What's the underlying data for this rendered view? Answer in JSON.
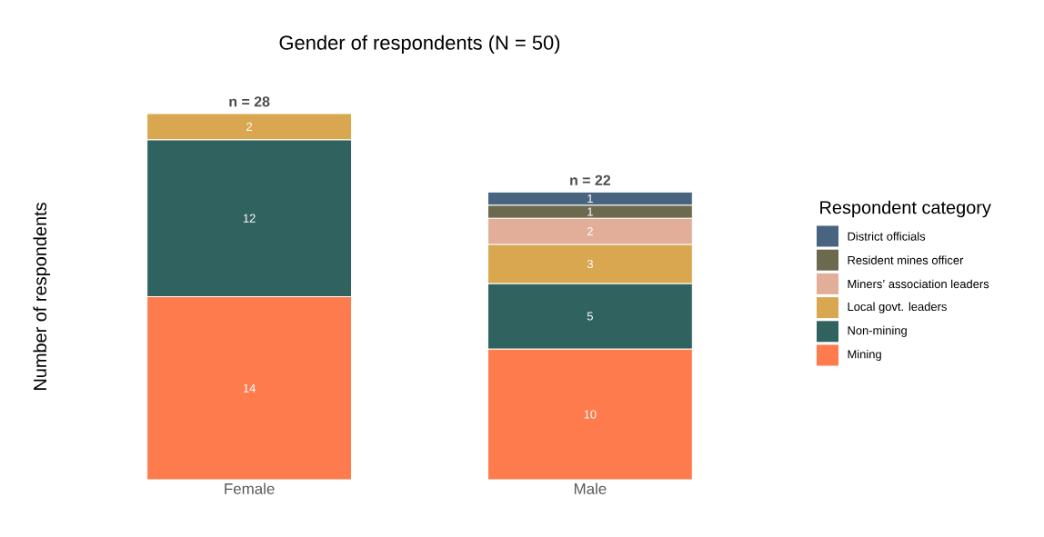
{
  "chart_data": {
    "type": "bar",
    "stacked": true,
    "title": "Gender of respondents (N = 50)",
    "ylabel": "Number of respondents",
    "legend_title": "Respondent category",
    "categories": [
      "Female",
      "Male"
    ],
    "series": [
      {
        "name": "Mining",
        "color": "#fd7b4d",
        "values": [
          14,
          10
        ]
      },
      {
        "name": "Non-mining",
        "color": "#30625f",
        "values": [
          12,
          5
        ]
      },
      {
        "name": "Local govt. leaders",
        "color": "#d9a750",
        "values": [
          2,
          3
        ]
      },
      {
        "name": "Miners’ association leaders",
        "color": "#e2ae9a",
        "values": [
          null,
          2
        ]
      },
      {
        "name": "Resident mines officer",
        "color": "#6b6a4f",
        "values": [
          null,
          1
        ]
      },
      {
        "name": "District officials",
        "color": "#486480",
        "values": [
          null,
          1
        ]
      }
    ],
    "tick_labels": "x",
    "legend": "right",
    "data_labels": true,
    "totals": [
      "n = 28",
      "n = 22"
    ]
  }
}
